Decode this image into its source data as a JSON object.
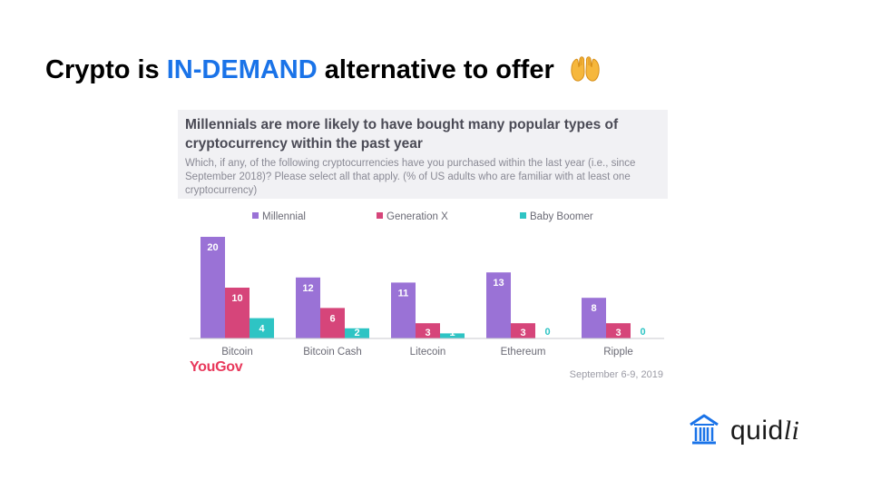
{
  "slide": {
    "title_prefix": "Crypto is ",
    "title_accent": "IN-DEMAND",
    "title_suffix": " alternative to offer",
    "accent_color": "#1a73e8",
    "title_icon": "palms-up-together-icon"
  },
  "chart_data": {
    "type": "bar",
    "title": "Millennials are more likely to have bought many popular types of cryptocurrency within the past year",
    "subtitle": "Which, if any, of the following cryptocurrencies have you purchased within the last year (i.e., since September 2018)? Please select all that apply. (% of US adults who are familiar with at least one cryptocurrency)",
    "categories": [
      "Bitcoin",
      "Bitcoin Cash",
      "Litecoin",
      "Ethereum",
      "Ripple"
    ],
    "series": [
      {
        "name": "Millennial",
        "color": "#9a72d6",
        "values": [
          20,
          12,
          11,
          13,
          8
        ]
      },
      {
        "name": "Generation X",
        "color": "#d6457a",
        "values": [
          10,
          6,
          3,
          3,
          3
        ]
      },
      {
        "name": "Baby Boomer",
        "color": "#2ec4c4",
        "values": [
          4,
          2,
          1,
          0,
          0
        ]
      }
    ],
    "ylim": [
      0,
      20
    ],
    "grid": false,
    "legend_position": "top",
    "source": "YouGov",
    "date": "September 6-9, 2019"
  },
  "brand": {
    "name_plain": "quid",
    "name_italic": "li",
    "logo_icon": "building-columns-icon"
  }
}
